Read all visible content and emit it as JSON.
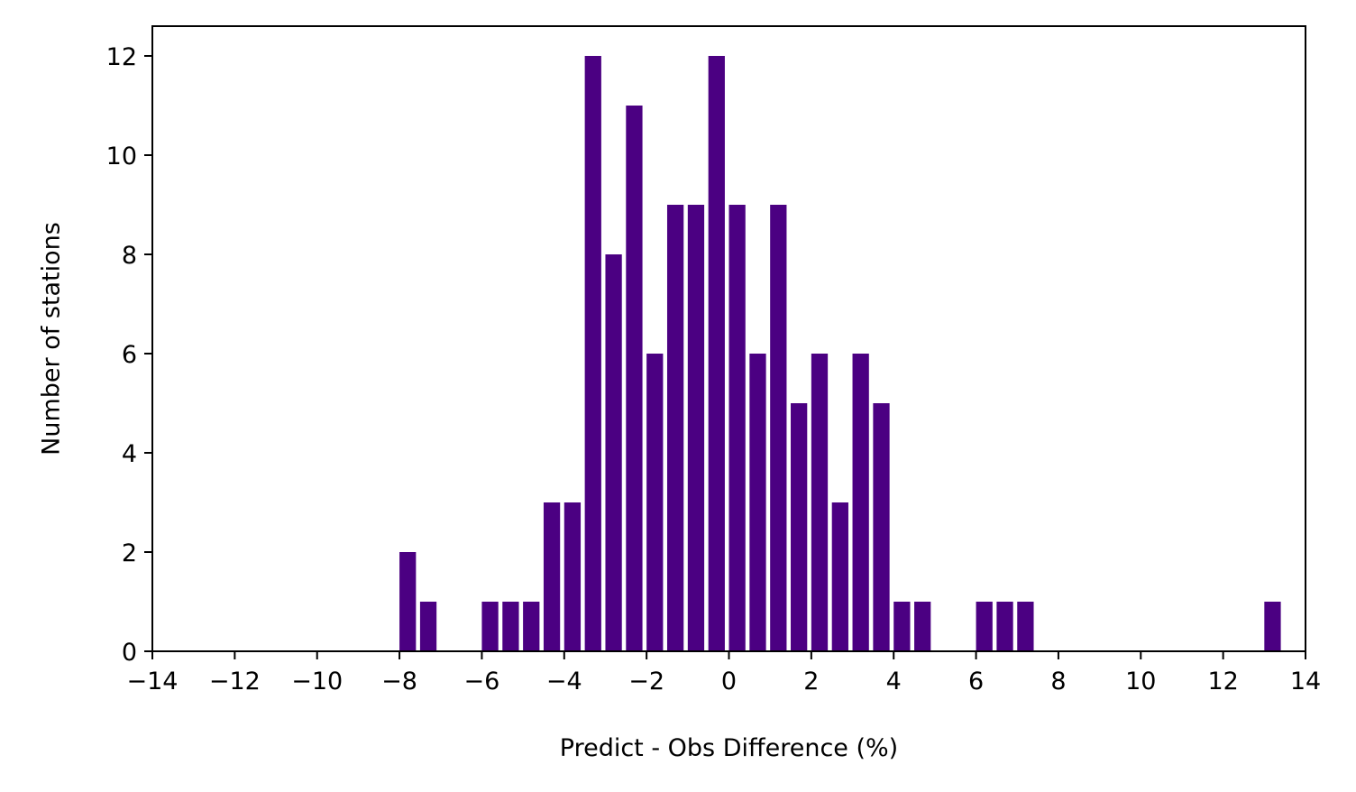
{
  "chart_data": {
    "type": "bar",
    "title": "",
    "xlabel": "Predict - Obs Difference (%)",
    "ylabel": "Number of stations",
    "xlim": [
      -14,
      14
    ],
    "ylim": [
      0,
      12.6
    ],
    "bar_width": 0.4,
    "bar_color": "#4b0082",
    "grid": false,
    "legend": "none",
    "x_ticks": [
      -14,
      -12,
      -10,
      -8,
      -6,
      -4,
      -2,
      0,
      2,
      4,
      6,
      8,
      10,
      12,
      14
    ],
    "x_tick_labels": [
      "−14",
      "−12",
      "−10",
      "−8",
      "−6",
      "−4",
      "−2",
      "0",
      "2",
      "4",
      "6",
      "8",
      "10",
      "12",
      "14"
    ],
    "y_ticks": [
      0,
      2,
      4,
      6,
      8,
      10,
      12
    ],
    "y_tick_labels": [
      "0",
      "2",
      "4",
      "6",
      "8",
      "10",
      "12"
    ],
    "x": [
      -7.8,
      -7.3,
      -5.8,
      -5.3,
      -4.8,
      -4.3,
      -3.8,
      -3.3,
      -2.8,
      -2.3,
      -1.8,
      -1.3,
      -0.8,
      -0.3,
      0.2,
      0.7,
      1.2,
      1.7,
      2.2,
      2.7,
      3.2,
      3.7,
      4.2,
      4.7,
      6.2,
      6.7,
      7.2,
      13.2
    ],
    "values": [
      2,
      1,
      1,
      1,
      1,
      3,
      3,
      12,
      8,
      11,
      6,
      9,
      9,
      12,
      9,
      6,
      9,
      5,
      6,
      3,
      6,
      5,
      1,
      1,
      1,
      1,
      1,
      1
    ]
  }
}
